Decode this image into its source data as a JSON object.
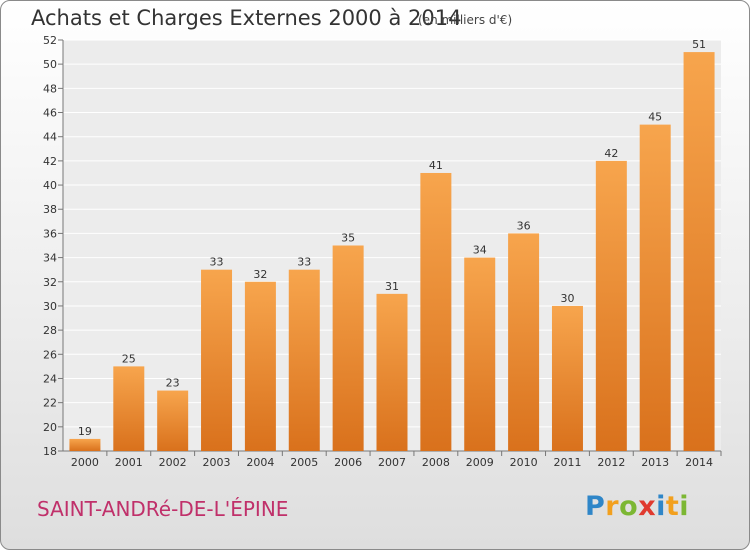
{
  "header": {
    "title": "Achats et Charges Externes 2000 à 2014",
    "subtitle": "(en milliers d'€)"
  },
  "footer": {
    "commune": "SAINT-ANDRé-DE-L'ÉPINE",
    "logo": "Proxiti"
  },
  "colors": {
    "bar_top": "#f7a54d",
    "bar_bottom": "#d9711c",
    "commune_text": "#c0306a"
  },
  "chart_data": {
    "type": "bar",
    "categories": [
      "2000",
      "2001",
      "2002",
      "2003",
      "2004",
      "2005",
      "2006",
      "2007",
      "2008",
      "2009",
      "2010",
      "2011",
      "2012",
      "2013",
      "2014"
    ],
    "values": [
      19,
      25,
      23,
      33,
      32,
      33,
      35,
      31,
      41,
      34,
      36,
      30,
      42,
      45,
      51
    ],
    "ylim": [
      18,
      52
    ],
    "yticks": [
      18,
      20,
      22,
      24,
      26,
      28,
      30,
      32,
      34,
      36,
      38,
      40,
      42,
      44,
      46,
      48,
      50,
      52
    ],
    "grid": true,
    "data_labels": true
  }
}
